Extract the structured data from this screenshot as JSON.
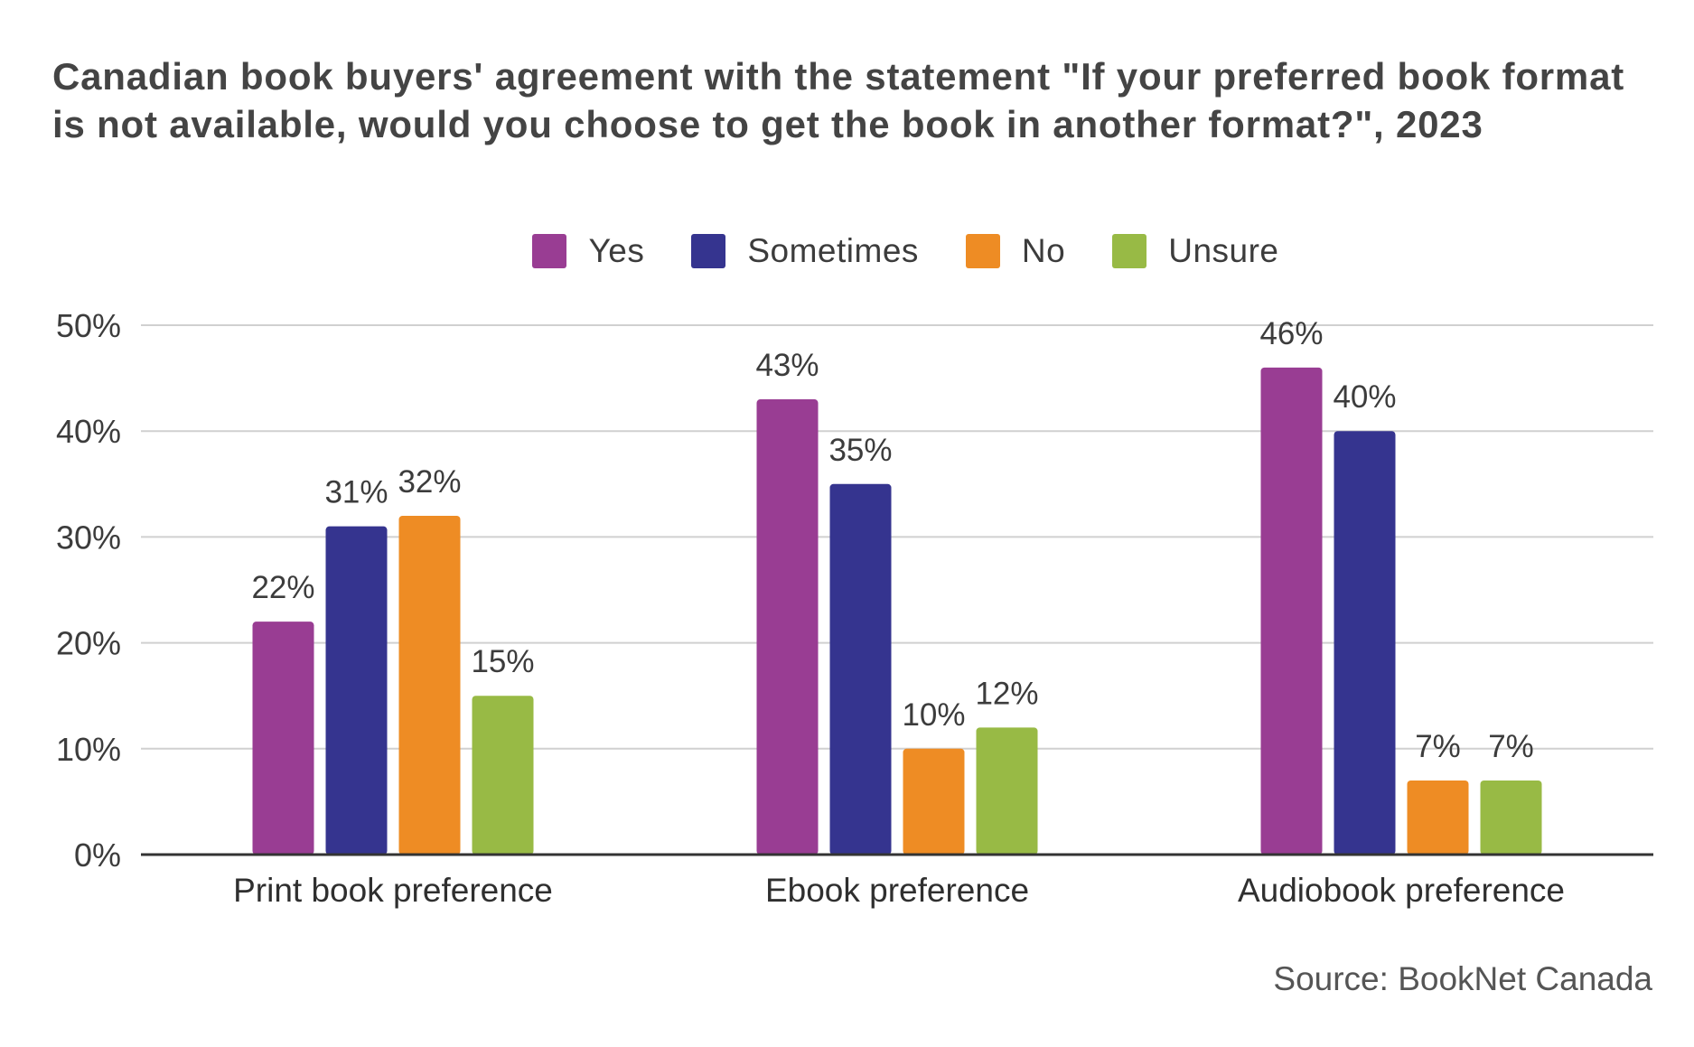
{
  "chart_data": {
    "type": "bar",
    "title": "Canadian book buyers' agreement with the statement \"If your preferred book format is not available, would you choose to get the book in another format?\", 2023",
    "categories": [
      "Print book preference",
      "Ebook preference",
      "Audiobook preference"
    ],
    "series": [
      {
        "name": "Yes",
        "color": "#993d93",
        "values": [
          22,
          43,
          46
        ]
      },
      {
        "name": "Sometimes",
        "color": "#35348f",
        "values": [
          31,
          35,
          40
        ]
      },
      {
        "name": "No",
        "color": "#ee8c24",
        "values": [
          32,
          10,
          7
        ]
      },
      {
        "name": "Unsure",
        "color": "#98ba45",
        "values": [
          15,
          12,
          7
        ]
      }
    ],
    "data_labels": [
      [
        "22%",
        "43%",
        "46%"
      ],
      [
        "31%",
        "35%",
        "40%"
      ],
      [
        "32%",
        "10%",
        "7%"
      ],
      [
        "15%",
        "12%",
        "7%"
      ]
    ],
    "y_ticks": [
      0,
      10,
      20,
      30,
      40,
      50
    ],
    "y_tick_labels": [
      "0%",
      "10%",
      "20%",
      "30%",
      "40%",
      "50%"
    ],
    "ylim": [
      0,
      50
    ],
    "grid": true,
    "legend_position": "top",
    "source": "Source: BookNet Canada"
  }
}
